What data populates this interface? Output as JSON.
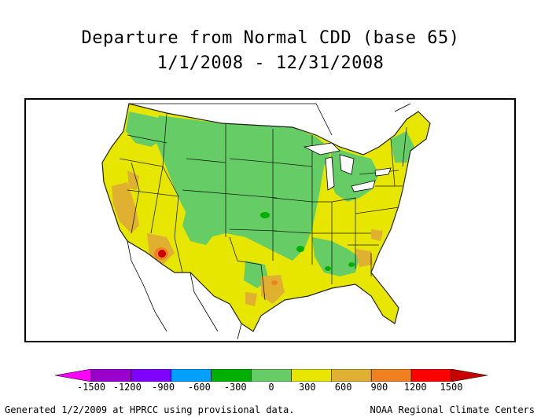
{
  "title": "Departure from Normal CDD (base 65)",
  "date_range": "1/1/2008 - 12/31/2008",
  "legend": {
    "ticks": [
      "-1500",
      "-1200",
      "-900",
      "-600",
      "-300",
      "0",
      "300",
      "600",
      "900",
      "1200",
      "1500"
    ],
    "colors": [
      "#ff00ff",
      "#9900cc",
      "#7f00ff",
      "#00a0ff",
      "#00b000",
      "#66cc66",
      "#e6e600",
      "#e0b030",
      "#f08020",
      "#ff0000",
      "#c80000"
    ]
  },
  "region_colors": {
    "background": "#e6e600",
    "near_normal_green": "#66cc66",
    "dark_green": "#00b000",
    "light_orange": "#e0b030",
    "orange": "#f08020",
    "red": "#cc0000"
  },
  "footer": {
    "left": "Generated 1/2/2009 at HPRCC using provisional data.",
    "right": "NOAA Regional Climate Centers"
  }
}
